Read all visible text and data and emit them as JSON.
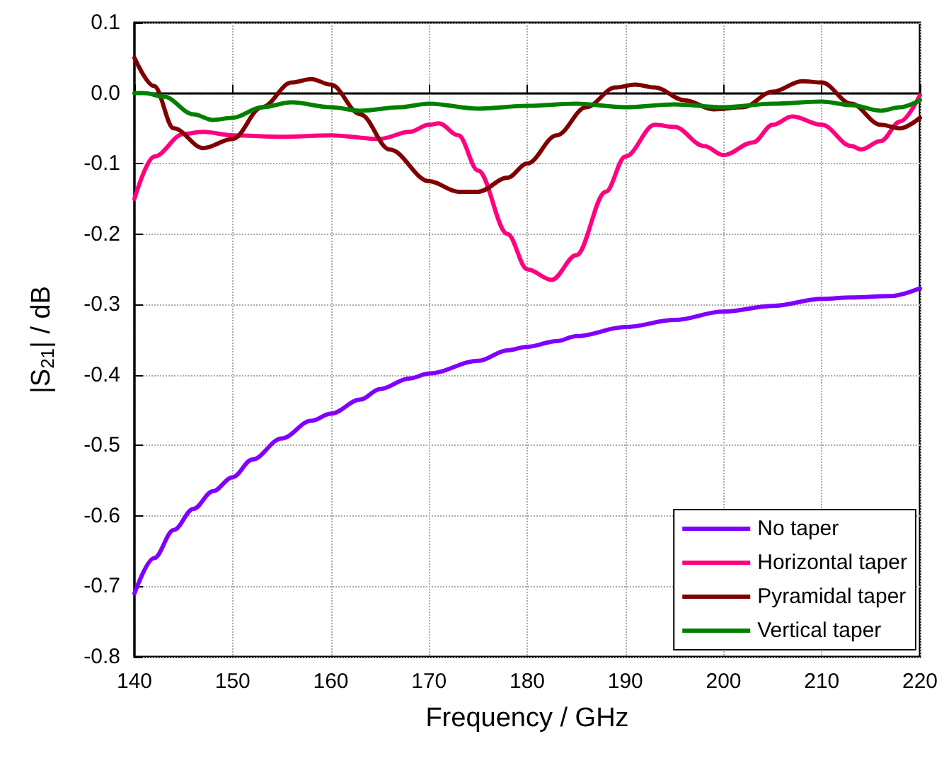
{
  "chart_data": {
    "type": "line",
    "xlabel": "Frequency / GHz",
    "ylabel": "|S$_{21}$| / dB",
    "xlim": [
      140,
      220
    ],
    "xticks": [
      140,
      150,
      160,
      170,
      180,
      190,
      200,
      210,
      220
    ],
    "ylim": [
      -0.8,
      0.1
    ],
    "yticks": [
      {
        "value": 0.1,
        "label": "0.1"
      },
      {
        "value": 0,
        "label": "0.0"
      },
      {
        "value": -0.1,
        "label": "-0.1"
      },
      {
        "value": -0.2,
        "label": "-0.2"
      },
      {
        "value": -0.3,
        "label": "-0.3"
      },
      {
        "value": -0.4,
        "label": "-0.4"
      },
      {
        "value": -0.5,
        "label": "-0.5"
      },
      {
        "value": -0.6,
        "label": "-0.6"
      },
      {
        "value": -0.7,
        "label": "-0.7"
      },
      {
        "value": -0.8,
        "label": "-0.8"
      }
    ],
    "grid": true,
    "legend": "bottom right",
    "marker": "none",
    "line_style": "solid",
    "series": [
      {
        "name": "No taper",
        "color": "#8000ff",
        "x": [
          140,
          142,
          144,
          146,
          148,
          150,
          152,
          155,
          158,
          160,
          163,
          165,
          168,
          170,
          175,
          178,
          180,
          183,
          185,
          190,
          195,
          200,
          205,
          210,
          213,
          217,
          220
        ],
        "values": [
          -0.71,
          -0.66,
          -0.62,
          -0.59,
          -0.565,
          -0.545,
          -0.52,
          -0.49,
          -0.465,
          -0.455,
          -0.435,
          -0.42,
          -0.405,
          -0.398,
          -0.38,
          -0.365,
          -0.36,
          -0.352,
          -0.345,
          -0.332,
          -0.322,
          -0.31,
          -0.302,
          -0.292,
          -0.29,
          -0.288,
          -0.277
        ]
      },
      {
        "name": "Horizontal taper",
        "color": "#ff0080",
        "x": [
          140,
          142,
          145,
          147,
          150,
          155,
          160,
          165,
          168,
          170,
          171,
          173,
          175,
          178,
          180,
          182.5,
          185,
          188,
          190,
          193,
          195,
          198,
          200,
          203,
          205,
          207,
          210,
          213,
          214,
          216,
          218,
          220
        ],
        "values": [
          -0.15,
          -0.09,
          -0.058,
          -0.055,
          -0.06,
          -0.062,
          -0.06,
          -0.065,
          -0.055,
          -0.045,
          -0.043,
          -0.06,
          -0.11,
          -0.2,
          -0.25,
          -0.265,
          -0.23,
          -0.14,
          -0.09,
          -0.045,
          -0.048,
          -0.075,
          -0.088,
          -0.07,
          -0.045,
          -0.033,
          -0.045,
          -0.075,
          -0.08,
          -0.068,
          -0.04,
          -0.003
        ]
      },
      {
        "name": "Pyramidal taper",
        "color": "#800000",
        "x": [
          140,
          142,
          144,
          147,
          150,
          153,
          156,
          158,
          160,
          163,
          166,
          170,
          173,
          175,
          178,
          180,
          183,
          186,
          189,
          191,
          193,
          196,
          199,
          202,
          205,
          208,
          210,
          213,
          216,
          218,
          220
        ],
        "values": [
          0.05,
          0.01,
          -0.05,
          -0.078,
          -0.065,
          -0.02,
          0.015,
          0.02,
          0.012,
          -0.03,
          -0.08,
          -0.125,
          -0.14,
          -0.14,
          -0.12,
          -0.1,
          -0.06,
          -0.02,
          0.008,
          0.012,
          0.008,
          -0.01,
          -0.023,
          -0.02,
          0.002,
          0.017,
          0.015,
          -0.015,
          -0.045,
          -0.05,
          -0.035
        ]
      },
      {
        "name": "Vertical taper",
        "color": "#008000",
        "x": [
          140,
          141,
          143,
          146,
          148,
          150,
          153,
          156,
          160,
          163,
          167,
          170,
          175,
          180,
          185,
          190,
          195,
          200,
          205,
          210,
          213,
          216,
          218,
          220
        ],
        "values": [
          0,
          0,
          -0.005,
          -0.03,
          -0.038,
          -0.035,
          -0.02,
          -0.013,
          -0.02,
          -0.025,
          -0.02,
          -0.015,
          -0.022,
          -0.018,
          -0.015,
          -0.02,
          -0.016,
          -0.02,
          -0.015,
          -0.012,
          -0.017,
          -0.025,
          -0.02,
          -0.01
        ]
      }
    ]
  }
}
